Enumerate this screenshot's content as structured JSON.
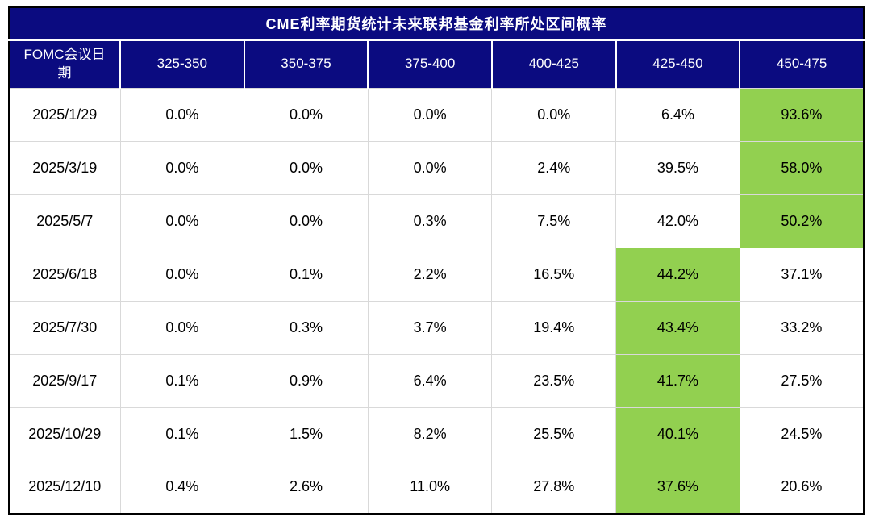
{
  "chart_data": {
    "type": "table",
    "title": "CME利率期货统计未来联邦基金利率所处区间概率",
    "corner_header": "FOMC会议日期",
    "columns": [
      "325-350",
      "350-375",
      "375-400",
      "400-425",
      "425-450",
      "450-475"
    ],
    "rows": [
      {
        "date": "2025/1/29",
        "values": [
          "0.0%",
          "0.0%",
          "0.0%",
          "0.0%",
          "6.4%",
          "93.6%"
        ],
        "highlight_col_index": 5
      },
      {
        "date": "2025/3/19",
        "values": [
          "0.0%",
          "0.0%",
          "0.0%",
          "2.4%",
          "39.5%",
          "58.0%"
        ],
        "highlight_col_index": 5
      },
      {
        "date": "2025/5/7",
        "values": [
          "0.0%",
          "0.0%",
          "0.3%",
          "7.5%",
          "42.0%",
          "50.2%"
        ],
        "highlight_col_index": 5
      },
      {
        "date": "2025/6/18",
        "values": [
          "0.0%",
          "0.1%",
          "2.2%",
          "16.5%",
          "44.2%",
          "37.1%"
        ],
        "highlight_col_index": 4
      },
      {
        "date": "2025/7/30",
        "values": [
          "0.0%",
          "0.3%",
          "3.7%",
          "19.4%",
          "43.4%",
          "33.2%"
        ],
        "highlight_col_index": 4
      },
      {
        "date": "2025/9/17",
        "values": [
          "0.1%",
          "0.9%",
          "6.4%",
          "23.5%",
          "41.7%",
          "27.5%"
        ],
        "highlight_col_index": 4
      },
      {
        "date": "2025/10/29",
        "values": [
          "0.1%",
          "1.5%",
          "8.2%",
          "25.5%",
          "40.1%",
          "24.5%"
        ],
        "highlight_col_index": 4
      },
      {
        "date": "2025/12/10",
        "values": [
          "0.4%",
          "2.6%",
          "11.0%",
          "27.8%",
          "37.6%",
          "20.6%"
        ],
        "highlight_col_index": 4
      }
    ],
    "layout": {
      "highlight_color": "#92d050",
      "header_bg_color": "#0b0b80",
      "header_text_color": "#ffffff",
      "grid_line_color": "#d9d9d9",
      "outer_border_color": "#000000"
    }
  }
}
